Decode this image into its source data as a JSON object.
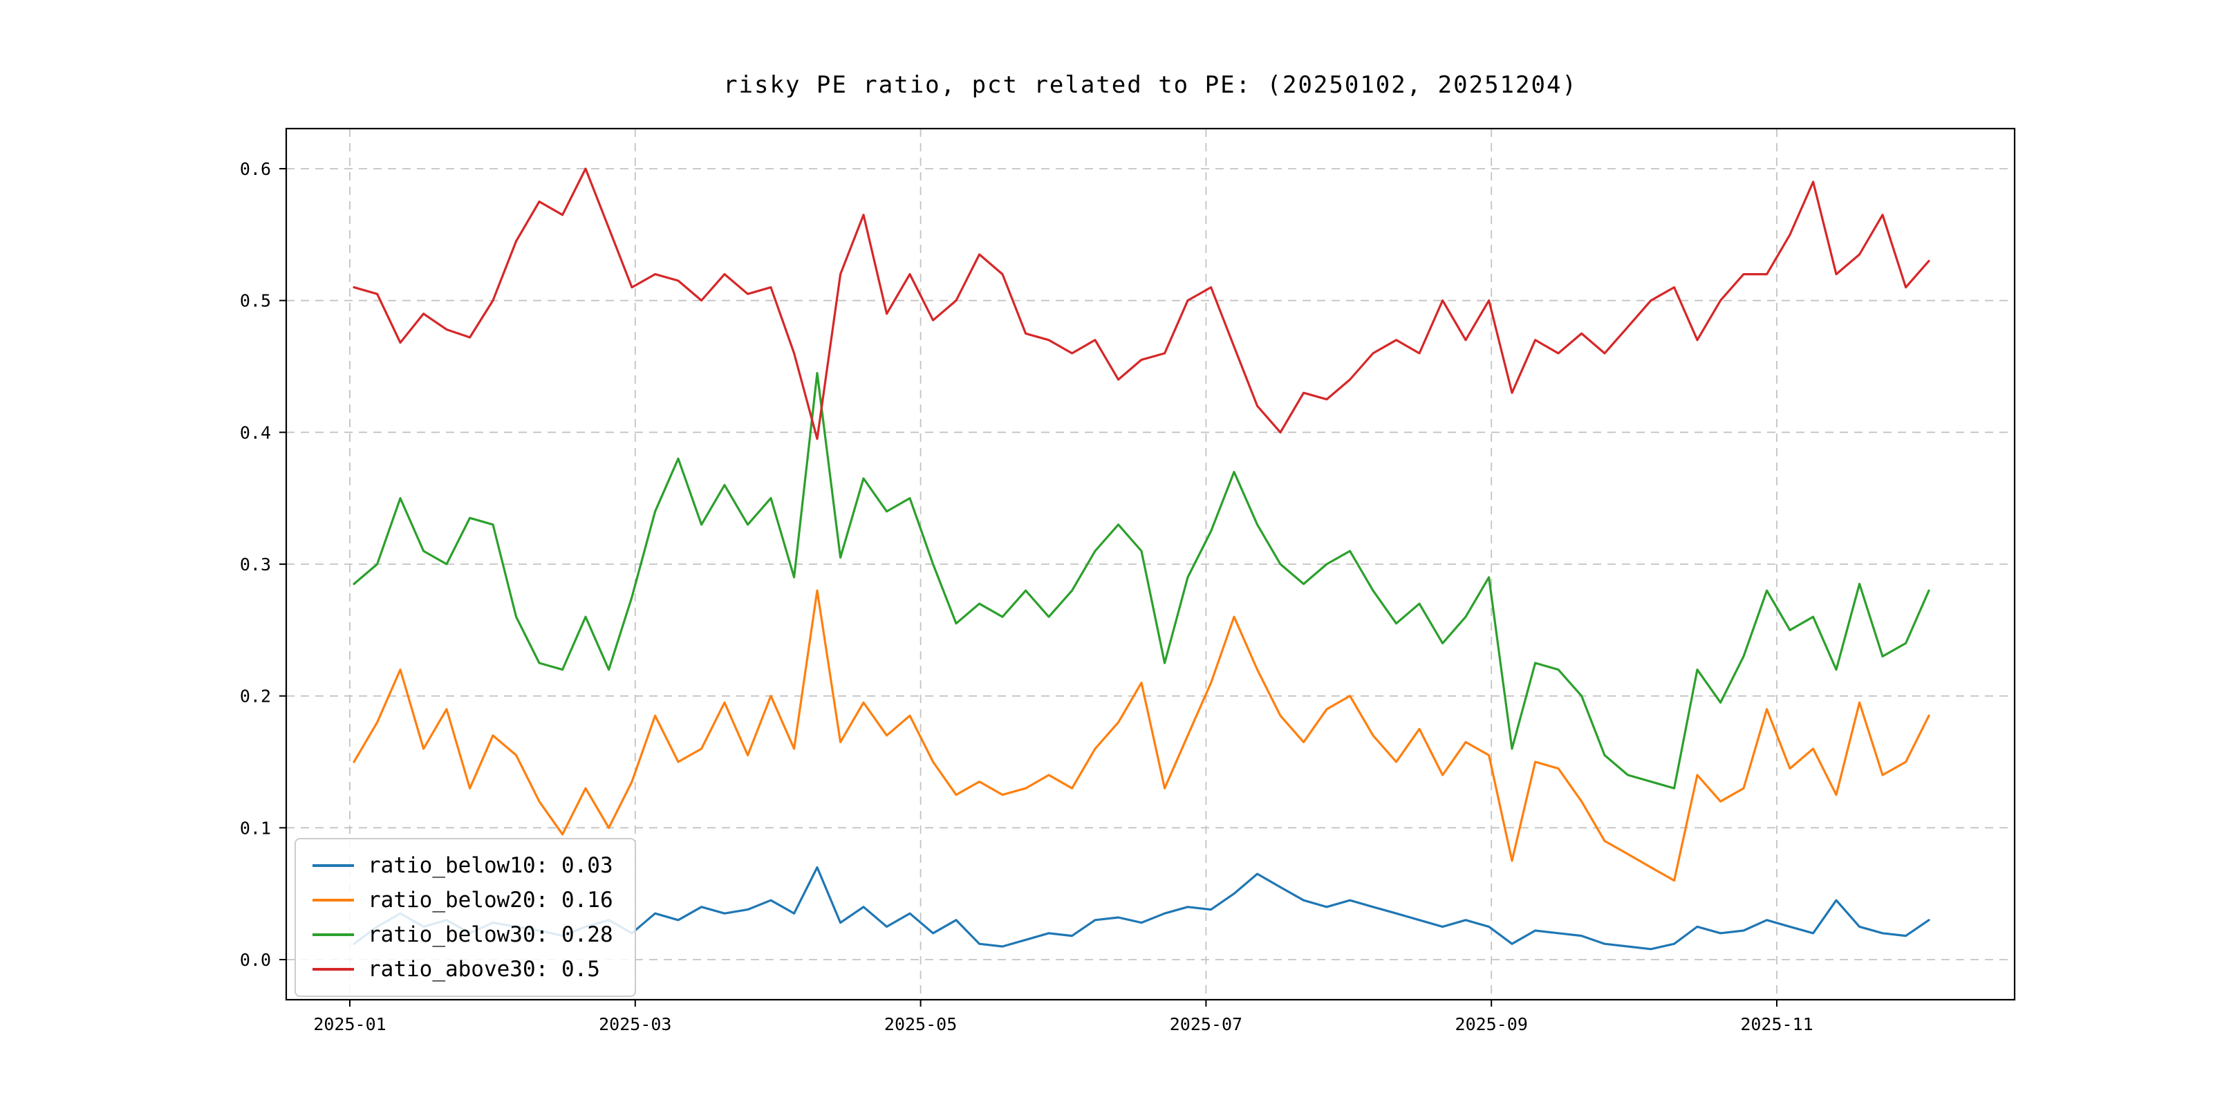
{
  "chart_data": {
    "type": "line",
    "title": "risky PE ratio, pct related to PE: (20250102, 20251204)",
    "xlabel": "",
    "ylabel": "",
    "grid": true,
    "grid_style": "dashed",
    "legend_position": "lower left",
    "ylim": [
      -0.03,
      0.63
    ],
    "yticks": [
      "0.0",
      "0.1",
      "0.2",
      "0.3",
      "0.4",
      "0.5",
      "0.6"
    ],
    "xticks": [
      "2025-01",
      "2025-03",
      "2025-05",
      "2025-07",
      "2025-09",
      "2025-11"
    ],
    "x": [
      "2025-01-02",
      "2025-01-07",
      "2025-01-12",
      "2025-01-17",
      "2025-01-22",
      "2025-01-27",
      "2025-02-01",
      "2025-02-06",
      "2025-02-11",
      "2025-02-16",
      "2025-02-21",
      "2025-02-26",
      "2025-03-03",
      "2025-03-08",
      "2025-03-13",
      "2025-03-18",
      "2025-03-23",
      "2025-03-28",
      "2025-04-02",
      "2025-04-07",
      "2025-04-12",
      "2025-04-17",
      "2025-04-22",
      "2025-04-27",
      "2025-05-02",
      "2025-05-07",
      "2025-05-12",
      "2025-05-17",
      "2025-05-22",
      "2025-05-27",
      "2025-06-01",
      "2025-06-06",
      "2025-06-11",
      "2025-06-16",
      "2025-06-21",
      "2025-06-26",
      "2025-07-01",
      "2025-07-06",
      "2025-07-11",
      "2025-07-16",
      "2025-07-21",
      "2025-07-26",
      "2025-07-31",
      "2025-08-05",
      "2025-08-10",
      "2025-08-15",
      "2025-08-20",
      "2025-08-25",
      "2025-08-30",
      "2025-09-04",
      "2025-09-09",
      "2025-09-14",
      "2025-09-19",
      "2025-09-24",
      "2025-09-29",
      "2025-10-04",
      "2025-10-09",
      "2025-10-14",
      "2025-10-19",
      "2025-10-24",
      "2025-10-29",
      "2025-11-03",
      "2025-11-08",
      "2025-11-13",
      "2025-11-18",
      "2025-11-23",
      "2025-11-28",
      "2025-12-01",
      "2025-12-04"
    ],
    "series": [
      {
        "name": "ratio_below10: 0.03",
        "color": "#1f77b4",
        "values": [
          0.012,
          0.025,
          0.035,
          0.025,
          0.03,
          0.02,
          0.028,
          0.025,
          0.022,
          0.018,
          0.025,
          0.03,
          0.02,
          0.035,
          0.03,
          0.04,
          0.035,
          0.038,
          0.045,
          0.035,
          0.07,
          0.028,
          0.04,
          0.025,
          0.035,
          0.02,
          0.03,
          0.012,
          0.01,
          0.015,
          0.02,
          0.018,
          0.03,
          0.032,
          0.028,
          0.035,
          0.04,
          0.038,
          0.05,
          0.065,
          0.055,
          0.045,
          0.04,
          0.045,
          0.04,
          0.035,
          0.03,
          0.025,
          0.03,
          0.025,
          0.012,
          0.022,
          0.02,
          0.018,
          0.012,
          0.01,
          0.008,
          0.012,
          0.025,
          0.02,
          0.022,
          0.03,
          0.025,
          0.02,
          0.045,
          0.025,
          0.02,
          0.018,
          0.03
        ]
      },
      {
        "name": "ratio_below20: 0.16",
        "color": "#ff7f0e",
        "values": [
          0.15,
          0.18,
          0.22,
          0.16,
          0.19,
          0.13,
          0.17,
          0.155,
          0.12,
          0.095,
          0.13,
          0.1,
          0.135,
          0.185,
          0.15,
          0.16,
          0.195,
          0.155,
          0.2,
          0.16,
          0.28,
          0.165,
          0.195,
          0.17,
          0.185,
          0.15,
          0.125,
          0.135,
          0.125,
          0.13,
          0.14,
          0.13,
          0.16,
          0.18,
          0.21,
          0.13,
          0.17,
          0.21,
          0.26,
          0.22,
          0.185,
          0.165,
          0.19,
          0.2,
          0.17,
          0.15,
          0.175,
          0.14,
          0.165,
          0.155,
          0.075,
          0.15,
          0.145,
          0.12,
          0.09,
          0.08,
          0.07,
          0.06,
          0.14,
          0.12,
          0.13,
          0.19,
          0.145,
          0.16,
          0.125,
          0.195,
          0.14,
          0.15,
          0.185
        ]
      },
      {
        "name": "ratio_below30: 0.28",
        "color": "#2ca02c",
        "values": [
          0.285,
          0.3,
          0.35,
          0.31,
          0.3,
          0.335,
          0.33,
          0.26,
          0.225,
          0.22,
          0.26,
          0.22,
          0.275,
          0.34,
          0.38,
          0.33,
          0.36,
          0.33,
          0.35,
          0.29,
          0.445,
          0.305,
          0.365,
          0.34,
          0.35,
          0.3,
          0.255,
          0.27,
          0.26,
          0.28,
          0.26,
          0.28,
          0.31,
          0.33,
          0.31,
          0.225,
          0.29,
          0.325,
          0.37,
          0.33,
          0.3,
          0.285,
          0.3,
          0.31,
          0.28,
          0.255,
          0.27,
          0.24,
          0.26,
          0.29,
          0.16,
          0.225,
          0.22,
          0.2,
          0.155,
          0.14,
          0.135,
          0.13,
          0.22,
          0.195,
          0.23,
          0.28,
          0.25,
          0.26,
          0.22,
          0.285,
          0.23,
          0.24,
          0.28
        ]
      },
      {
        "name": "ratio_above30: 0.5",
        "color": "#d62728",
        "values": [
          0.51,
          0.505,
          0.468,
          0.49,
          0.478,
          0.472,
          0.5,
          0.545,
          0.575,
          0.565,
          0.6,
          0.555,
          0.51,
          0.52,
          0.515,
          0.5,
          0.52,
          0.505,
          0.51,
          0.46,
          0.395,
          0.52,
          0.565,
          0.49,
          0.52,
          0.485,
          0.5,
          0.535,
          0.52,
          0.475,
          0.47,
          0.46,
          0.47,
          0.44,
          0.455,
          0.46,
          0.5,
          0.51,
          0.465,
          0.42,
          0.4,
          0.43,
          0.425,
          0.44,
          0.46,
          0.47,
          0.46,
          0.5,
          0.47,
          0.5,
          0.43,
          0.47,
          0.46,
          0.475,
          0.46,
          0.48,
          0.5,
          0.51,
          0.47,
          0.5,
          0.52,
          0.52,
          0.55,
          0.59,
          0.52,
          0.535,
          0.565,
          0.51,
          0.53
        ]
      }
    ]
  }
}
